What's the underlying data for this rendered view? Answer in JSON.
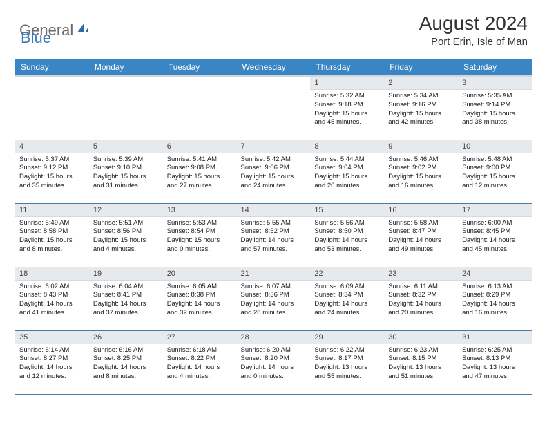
{
  "logo": {
    "text1": "General",
    "text2": "Blue"
  },
  "title": {
    "month": "August 2024",
    "location": "Port Erin, Isle of Man"
  },
  "colors": {
    "header_bg": "#3a85c4",
    "row_divider": "#4a7ba8",
    "daynum_bg": "#e7eaec",
    "text": "#222222",
    "logo_gray": "#6a6a6a",
    "logo_blue": "#3a7ab8"
  },
  "typography": {
    "title_fontsize": 28,
    "location_fontsize": 15,
    "header_fontsize": 12,
    "daynum_fontsize": 11,
    "body_fontsize": 9.5
  },
  "columns": [
    "Sunday",
    "Monday",
    "Tuesday",
    "Wednesday",
    "Thursday",
    "Friday",
    "Saturday"
  ],
  "weeks": [
    [
      null,
      null,
      null,
      null,
      {
        "n": "1",
        "sr": "5:32 AM",
        "ss": "9:18 PM",
        "dl": "15 hours and 45 minutes."
      },
      {
        "n": "2",
        "sr": "5:34 AM",
        "ss": "9:16 PM",
        "dl": "15 hours and 42 minutes."
      },
      {
        "n": "3",
        "sr": "5:35 AM",
        "ss": "9:14 PM",
        "dl": "15 hours and 38 minutes."
      }
    ],
    [
      {
        "n": "4",
        "sr": "5:37 AM",
        "ss": "9:12 PM",
        "dl": "15 hours and 35 minutes."
      },
      {
        "n": "5",
        "sr": "5:39 AM",
        "ss": "9:10 PM",
        "dl": "15 hours and 31 minutes."
      },
      {
        "n": "6",
        "sr": "5:41 AM",
        "ss": "9:08 PM",
        "dl": "15 hours and 27 minutes."
      },
      {
        "n": "7",
        "sr": "5:42 AM",
        "ss": "9:06 PM",
        "dl": "15 hours and 24 minutes."
      },
      {
        "n": "8",
        "sr": "5:44 AM",
        "ss": "9:04 PM",
        "dl": "15 hours and 20 minutes."
      },
      {
        "n": "9",
        "sr": "5:46 AM",
        "ss": "9:02 PM",
        "dl": "15 hours and 16 minutes."
      },
      {
        "n": "10",
        "sr": "5:48 AM",
        "ss": "9:00 PM",
        "dl": "15 hours and 12 minutes."
      }
    ],
    [
      {
        "n": "11",
        "sr": "5:49 AM",
        "ss": "8:58 PM",
        "dl": "15 hours and 8 minutes."
      },
      {
        "n": "12",
        "sr": "5:51 AM",
        "ss": "8:56 PM",
        "dl": "15 hours and 4 minutes."
      },
      {
        "n": "13",
        "sr": "5:53 AM",
        "ss": "8:54 PM",
        "dl": "15 hours and 0 minutes."
      },
      {
        "n": "14",
        "sr": "5:55 AM",
        "ss": "8:52 PM",
        "dl": "14 hours and 57 minutes."
      },
      {
        "n": "15",
        "sr": "5:56 AM",
        "ss": "8:50 PM",
        "dl": "14 hours and 53 minutes."
      },
      {
        "n": "16",
        "sr": "5:58 AM",
        "ss": "8:47 PM",
        "dl": "14 hours and 49 minutes."
      },
      {
        "n": "17",
        "sr": "6:00 AM",
        "ss": "8:45 PM",
        "dl": "14 hours and 45 minutes."
      }
    ],
    [
      {
        "n": "18",
        "sr": "6:02 AM",
        "ss": "8:43 PM",
        "dl": "14 hours and 41 minutes."
      },
      {
        "n": "19",
        "sr": "6:04 AM",
        "ss": "8:41 PM",
        "dl": "14 hours and 37 minutes."
      },
      {
        "n": "20",
        "sr": "6:05 AM",
        "ss": "8:38 PM",
        "dl": "14 hours and 32 minutes."
      },
      {
        "n": "21",
        "sr": "6:07 AM",
        "ss": "8:36 PM",
        "dl": "14 hours and 28 minutes."
      },
      {
        "n": "22",
        "sr": "6:09 AM",
        "ss": "8:34 PM",
        "dl": "14 hours and 24 minutes."
      },
      {
        "n": "23",
        "sr": "6:11 AM",
        "ss": "8:32 PM",
        "dl": "14 hours and 20 minutes."
      },
      {
        "n": "24",
        "sr": "6:13 AM",
        "ss": "8:29 PM",
        "dl": "14 hours and 16 minutes."
      }
    ],
    [
      {
        "n": "25",
        "sr": "6:14 AM",
        "ss": "8:27 PM",
        "dl": "14 hours and 12 minutes."
      },
      {
        "n": "26",
        "sr": "6:16 AM",
        "ss": "8:25 PM",
        "dl": "14 hours and 8 minutes."
      },
      {
        "n": "27",
        "sr": "6:18 AM",
        "ss": "8:22 PM",
        "dl": "14 hours and 4 minutes."
      },
      {
        "n": "28",
        "sr": "6:20 AM",
        "ss": "8:20 PM",
        "dl": "14 hours and 0 minutes."
      },
      {
        "n": "29",
        "sr": "6:22 AM",
        "ss": "8:17 PM",
        "dl": "13 hours and 55 minutes."
      },
      {
        "n": "30",
        "sr": "6:23 AM",
        "ss": "8:15 PM",
        "dl": "13 hours and 51 minutes."
      },
      {
        "n": "31",
        "sr": "6:25 AM",
        "ss": "8:13 PM",
        "dl": "13 hours and 47 minutes."
      }
    ]
  ],
  "labels": {
    "sunrise": "Sunrise:",
    "sunset": "Sunset:",
    "daylight": "Daylight:"
  }
}
